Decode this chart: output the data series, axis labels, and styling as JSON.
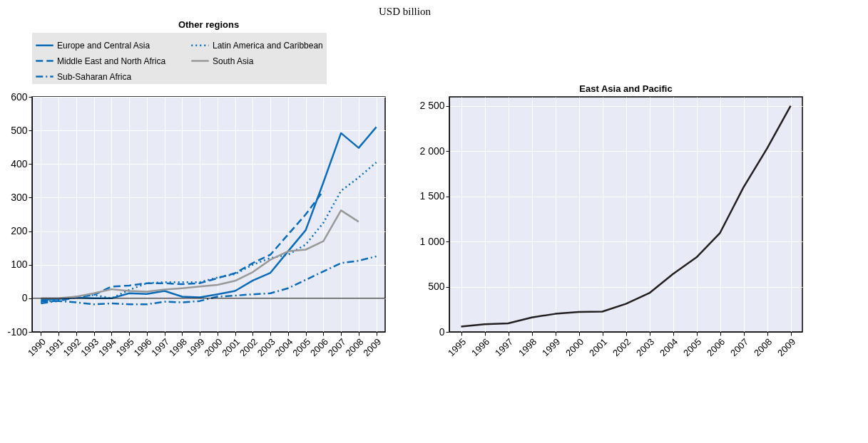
{
  "chart_data": [
    {
      "type": "line",
      "title": "Other regions",
      "subtitle": "USD billion",
      "categories": [
        "1990",
        "1991",
        "1992",
        "1993",
        "1994",
        "1995",
        "1996",
        "1997",
        "1998",
        "1999",
        "2000",
        "2001",
        "2002",
        "2003",
        "2004",
        "2005",
        "2006",
        "2007",
        "2008",
        "2009"
      ],
      "series": [
        {
          "name": "Europe and Central Asia",
          "color": "#0a6cb9",
          "line_style": "solid",
          "values": [
            -5,
            -2,
            2,
            0,
            0,
            15,
            13,
            22,
            5,
            3,
            12,
            22,
            53,
            76,
            140,
            203,
            345,
            492,
            448,
            510
          ]
        },
        {
          "name": "Middle East and North Africa",
          "color": "#0a6cb9",
          "line_style": "dashed",
          "values": [
            -8,
            -8,
            3,
            10,
            35,
            38,
            45,
            45,
            42,
            45,
            60,
            75,
            105,
            130,
            190,
            250,
            320,
            null,
            null,
            null
          ]
        },
        {
          "name": "Sub-Saharan Africa",
          "color": "#0a6cb9",
          "line_style": "dashdot",
          "values": [
            -15,
            -8,
            -12,
            -18,
            -15,
            -18,
            -18,
            -10,
            -12,
            -8,
            5,
            8,
            12,
            15,
            30,
            55,
            80,
            105,
            112,
            125
          ]
        },
        {
          "name": "Latin America and Caribbean",
          "color": "#0a6cb9",
          "line_style": "dotted",
          "values": [
            -12,
            -5,
            5,
            10,
            0,
            25,
            45,
            48,
            48,
            48,
            62,
            72,
            100,
            120,
            130,
            160,
            225,
            320,
            360,
            405
          ]
        },
        {
          "name": "South Asia",
          "color": "#999999",
          "line_style": "solid",
          "values": [
            0,
            0,
            5,
            15,
            27,
            22,
            20,
            26,
            30,
            35,
            40,
            52,
            78,
            115,
            140,
            145,
            170,
            262,
            228,
            null
          ]
        }
      ],
      "ylim": [
        -100,
        600
      ],
      "yticks": [
        -100,
        0,
        100,
        200,
        300,
        400,
        500,
        600
      ],
      "grid": true,
      "legend": "top left",
      "ref_lines": [
        {
          "axis": "y",
          "value": 0,
          "color": "#000000"
        }
      ]
    },
    {
      "type": "line",
      "title": "East Asia and Pacific",
      "categories": [
        "1995",
        "1996",
        "1997",
        "1998",
        "1999",
        "2000",
        "2001",
        "2002",
        "2003",
        "2004",
        "2005",
        "2006",
        "2007",
        "2008",
        "2009"
      ],
      "series": [
        {
          "color": "#231f20",
          "line_style": "solid",
          "values": [
            60,
            85,
            95,
            160,
            200,
            220,
            225,
            310,
            430,
            640,
            825,
            1095,
            1600,
            2030,
            2500
          ]
        }
      ],
      "ylim": [
        0,
        2600
      ],
      "yticks": [
        0,
        {
          "value": 500,
          "label": "500"
        },
        {
          "value": 1000,
          "label": "1 000"
        },
        {
          "value": 1500,
          "label": "1 500"
        },
        {
          "value": 2000,
          "label": "2 000"
        },
        {
          "value": 2500,
          "label": "2 500"
        }
      ],
      "grid": true
    }
  ]
}
